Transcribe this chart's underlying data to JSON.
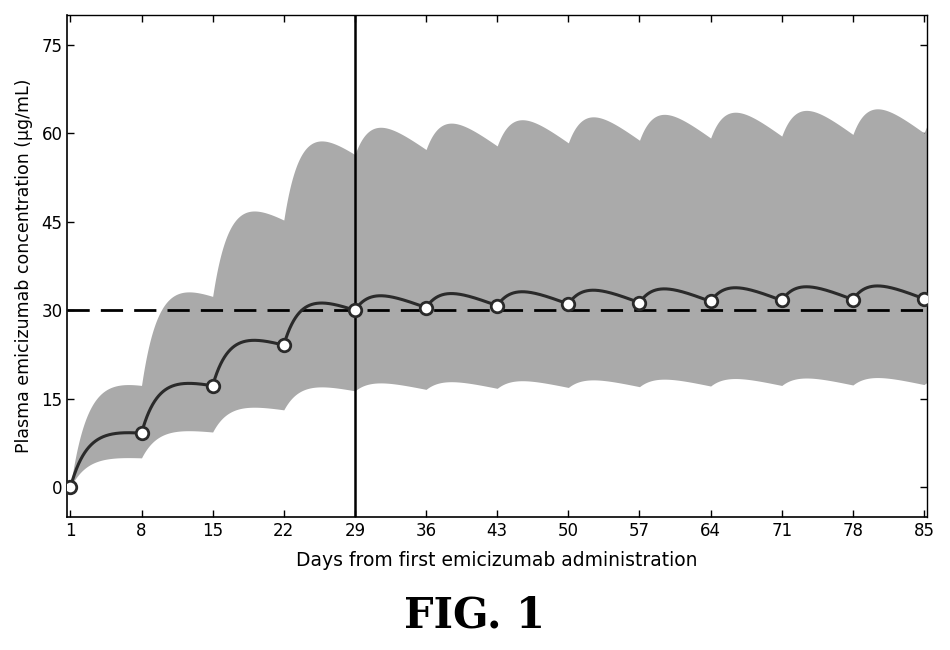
{
  "xlabel": "Days from first emicizumab administration",
  "ylabel": "Plasma emicizumab concentration (μg/mL)",
  "figure_title": "FIG. 1",
  "xlim": [
    1,
    85
  ],
  "ylim": [
    -5,
    80
  ],
  "yticks": [
    0,
    15,
    30,
    45,
    60,
    75
  ],
  "xticks": [
    1,
    8,
    15,
    22,
    29,
    36,
    43,
    50,
    57,
    64,
    71,
    78,
    85
  ],
  "dashed_line_y": 30,
  "vline_x": 29,
  "background_color": "#ffffff",
  "band_color": "#aaaaaa",
  "mean_line_color": "#2a2a2a",
  "marker_facecolor": "#ffffff",
  "marker_edgecolor": "#2a2a2a",
  "marker_size": 9,
  "marker_linewidth": 2.0,
  "mean_linewidth": 2.2,
  "band_alpha": 1.0,
  "marker_days": [
    1,
    8,
    15,
    22,
    29,
    36,
    43,
    50,
    57,
    64,
    71,
    78,
    85
  ]
}
